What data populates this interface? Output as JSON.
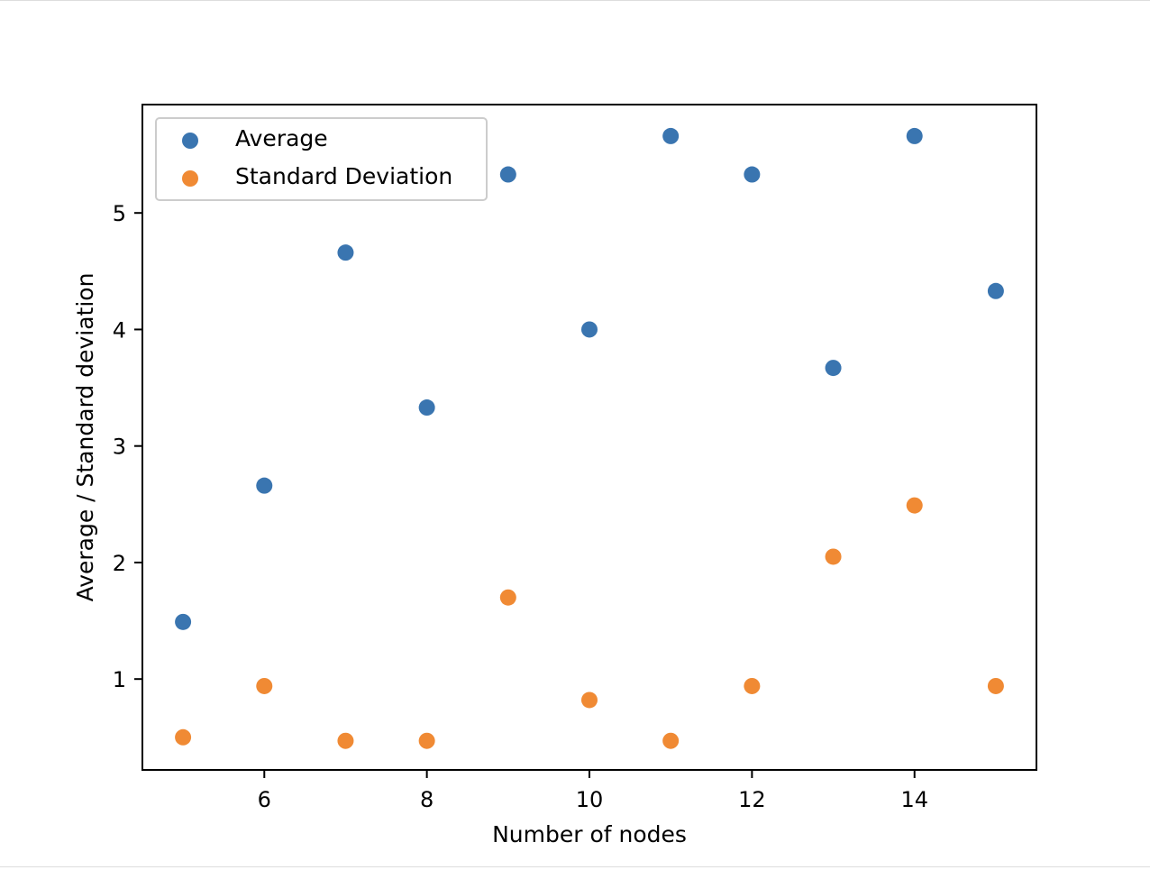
{
  "chart_data": {
    "type": "scatter",
    "title": "",
    "xlabel": "Number of nodes",
    "ylabel": "Average / Standard deviation",
    "xlim": [
      4.5,
      15.5
    ],
    "ylim": [
      0.22,
      5.93
    ],
    "xticks": [
      6,
      8,
      10,
      12,
      14
    ],
    "yticks": [
      1,
      2,
      3,
      4,
      5
    ],
    "xtick_labels": [
      "6",
      "8",
      "10",
      "12",
      "14"
    ],
    "ytick_labels": [
      "1",
      "2",
      "3",
      "4",
      "5"
    ],
    "grid": false,
    "legend_position": "top-left",
    "x": [
      5,
      6,
      7,
      8,
      9,
      10,
      11,
      12,
      13,
      14,
      15
    ],
    "series": [
      {
        "name": "Average",
        "color": "#3a75b0",
        "values": [
          1.49,
          2.66,
          4.66,
          3.33,
          5.33,
          4.0,
          5.66,
          5.33,
          3.67,
          5.66,
          4.33
        ]
      },
      {
        "name": "Standard Deviation",
        "color": "#f08a34",
        "values": [
          0.5,
          0.94,
          0.47,
          0.47,
          1.7,
          0.82,
          0.47,
          0.94,
          2.05,
          2.49,
          0.94
        ]
      }
    ]
  }
}
